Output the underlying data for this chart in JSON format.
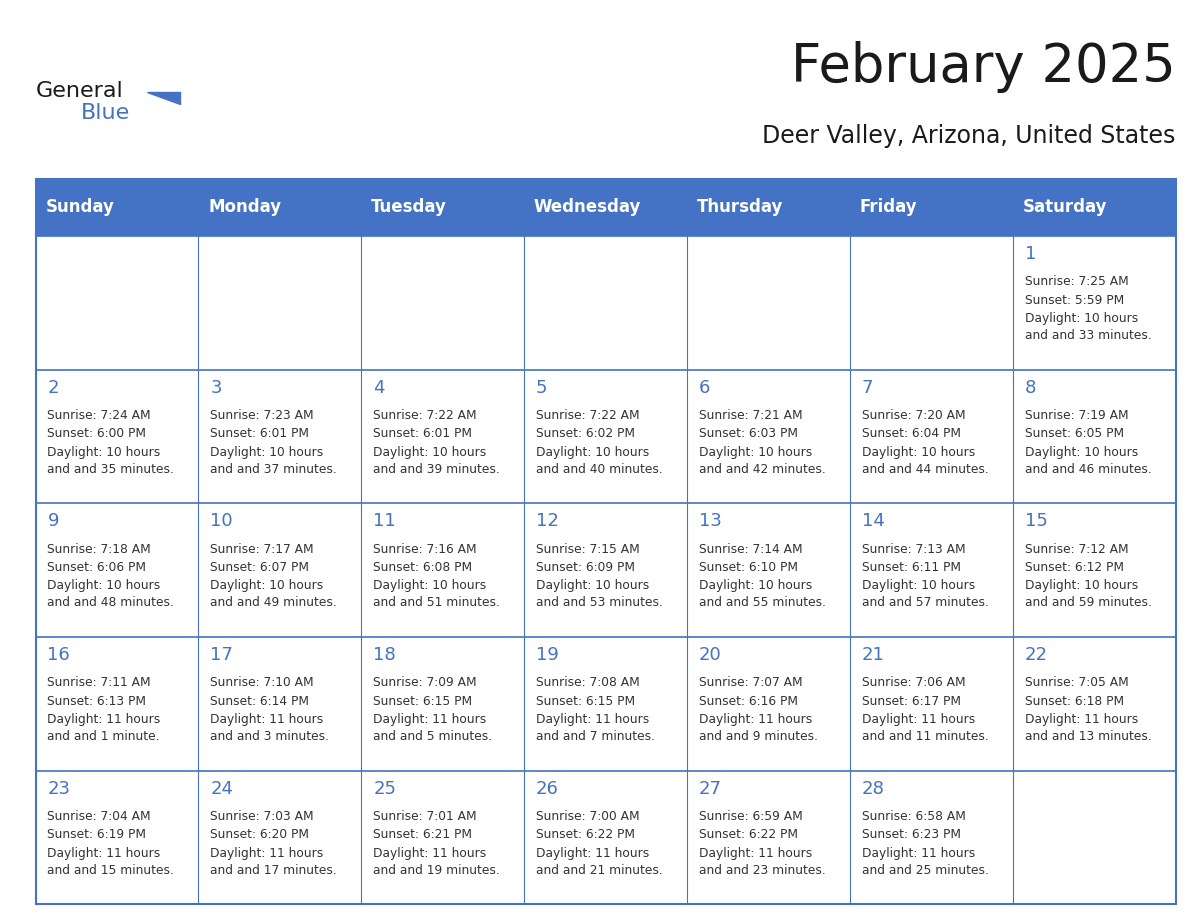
{
  "title": "February 2025",
  "subtitle": "Deer Valley, Arizona, United States",
  "header_bg_color": "#4472C4",
  "header_text_color": "#FFFFFF",
  "grid_color": "#4472C4",
  "day_headers": [
    "Sunday",
    "Monday",
    "Tuesday",
    "Wednesday",
    "Thursday",
    "Friday",
    "Saturday"
  ],
  "title_color": "#1a1a1a",
  "subtitle_color": "#1a1a1a",
  "cell_text_color": "#333333",
  "day_num_color": "#4472C4",
  "logo_triangle_color": "#4472C4",
  "logo_blue_color": "#4472C4",
  "logo_general_color": "#1a1a1a",
  "calendar_data": [
    [
      null,
      null,
      null,
      null,
      null,
      null,
      {
        "day": 1,
        "sunrise": "7:25 AM",
        "sunset": "5:59 PM",
        "daylight": "10 hours and 33 minutes."
      }
    ],
    [
      {
        "day": 2,
        "sunrise": "7:24 AM",
        "sunset": "6:00 PM",
        "daylight": "10 hours and 35 minutes."
      },
      {
        "day": 3,
        "sunrise": "7:23 AM",
        "sunset": "6:01 PM",
        "daylight": "10 hours and 37 minutes."
      },
      {
        "day": 4,
        "sunrise": "7:22 AM",
        "sunset": "6:01 PM",
        "daylight": "10 hours and 39 minutes."
      },
      {
        "day": 5,
        "sunrise": "7:22 AM",
        "sunset": "6:02 PM",
        "daylight": "10 hours and 40 minutes."
      },
      {
        "day": 6,
        "sunrise": "7:21 AM",
        "sunset": "6:03 PM",
        "daylight": "10 hours and 42 minutes."
      },
      {
        "day": 7,
        "sunrise": "7:20 AM",
        "sunset": "6:04 PM",
        "daylight": "10 hours and 44 minutes."
      },
      {
        "day": 8,
        "sunrise": "7:19 AM",
        "sunset": "6:05 PM",
        "daylight": "10 hours and 46 minutes."
      }
    ],
    [
      {
        "day": 9,
        "sunrise": "7:18 AM",
        "sunset": "6:06 PM",
        "daylight": "10 hours and 48 minutes."
      },
      {
        "day": 10,
        "sunrise": "7:17 AM",
        "sunset": "6:07 PM",
        "daylight": "10 hours and 49 minutes."
      },
      {
        "day": 11,
        "sunrise": "7:16 AM",
        "sunset": "6:08 PM",
        "daylight": "10 hours and 51 minutes."
      },
      {
        "day": 12,
        "sunrise": "7:15 AM",
        "sunset": "6:09 PM",
        "daylight": "10 hours and 53 minutes."
      },
      {
        "day": 13,
        "sunrise": "7:14 AM",
        "sunset": "6:10 PM",
        "daylight": "10 hours and 55 minutes."
      },
      {
        "day": 14,
        "sunrise": "7:13 AM",
        "sunset": "6:11 PM",
        "daylight": "10 hours and 57 minutes."
      },
      {
        "day": 15,
        "sunrise": "7:12 AM",
        "sunset": "6:12 PM",
        "daylight": "10 hours and 59 minutes."
      }
    ],
    [
      {
        "day": 16,
        "sunrise": "7:11 AM",
        "sunset": "6:13 PM",
        "daylight": "11 hours and 1 minute."
      },
      {
        "day": 17,
        "sunrise": "7:10 AM",
        "sunset": "6:14 PM",
        "daylight": "11 hours and 3 minutes."
      },
      {
        "day": 18,
        "sunrise": "7:09 AM",
        "sunset": "6:15 PM",
        "daylight": "11 hours and 5 minutes."
      },
      {
        "day": 19,
        "sunrise": "7:08 AM",
        "sunset": "6:15 PM",
        "daylight": "11 hours and 7 minutes."
      },
      {
        "day": 20,
        "sunrise": "7:07 AM",
        "sunset": "6:16 PM",
        "daylight": "11 hours and 9 minutes."
      },
      {
        "day": 21,
        "sunrise": "7:06 AM",
        "sunset": "6:17 PM",
        "daylight": "11 hours and 11 minutes."
      },
      {
        "day": 22,
        "sunrise": "7:05 AM",
        "sunset": "6:18 PM",
        "daylight": "11 hours and 13 minutes."
      }
    ],
    [
      {
        "day": 23,
        "sunrise": "7:04 AM",
        "sunset": "6:19 PM",
        "daylight": "11 hours and 15 minutes."
      },
      {
        "day": 24,
        "sunrise": "7:03 AM",
        "sunset": "6:20 PM",
        "daylight": "11 hours and 17 minutes."
      },
      {
        "day": 25,
        "sunrise": "7:01 AM",
        "sunset": "6:21 PM",
        "daylight": "11 hours and 19 minutes."
      },
      {
        "day": 26,
        "sunrise": "7:00 AM",
        "sunset": "6:22 PM",
        "daylight": "11 hours and 21 minutes."
      },
      {
        "day": 27,
        "sunrise": "6:59 AM",
        "sunset": "6:22 PM",
        "daylight": "11 hours and 23 minutes."
      },
      {
        "day": 28,
        "sunrise": "6:58 AM",
        "sunset": "6:23 PM",
        "daylight": "11 hours and 25 minutes."
      },
      null
    ]
  ]
}
